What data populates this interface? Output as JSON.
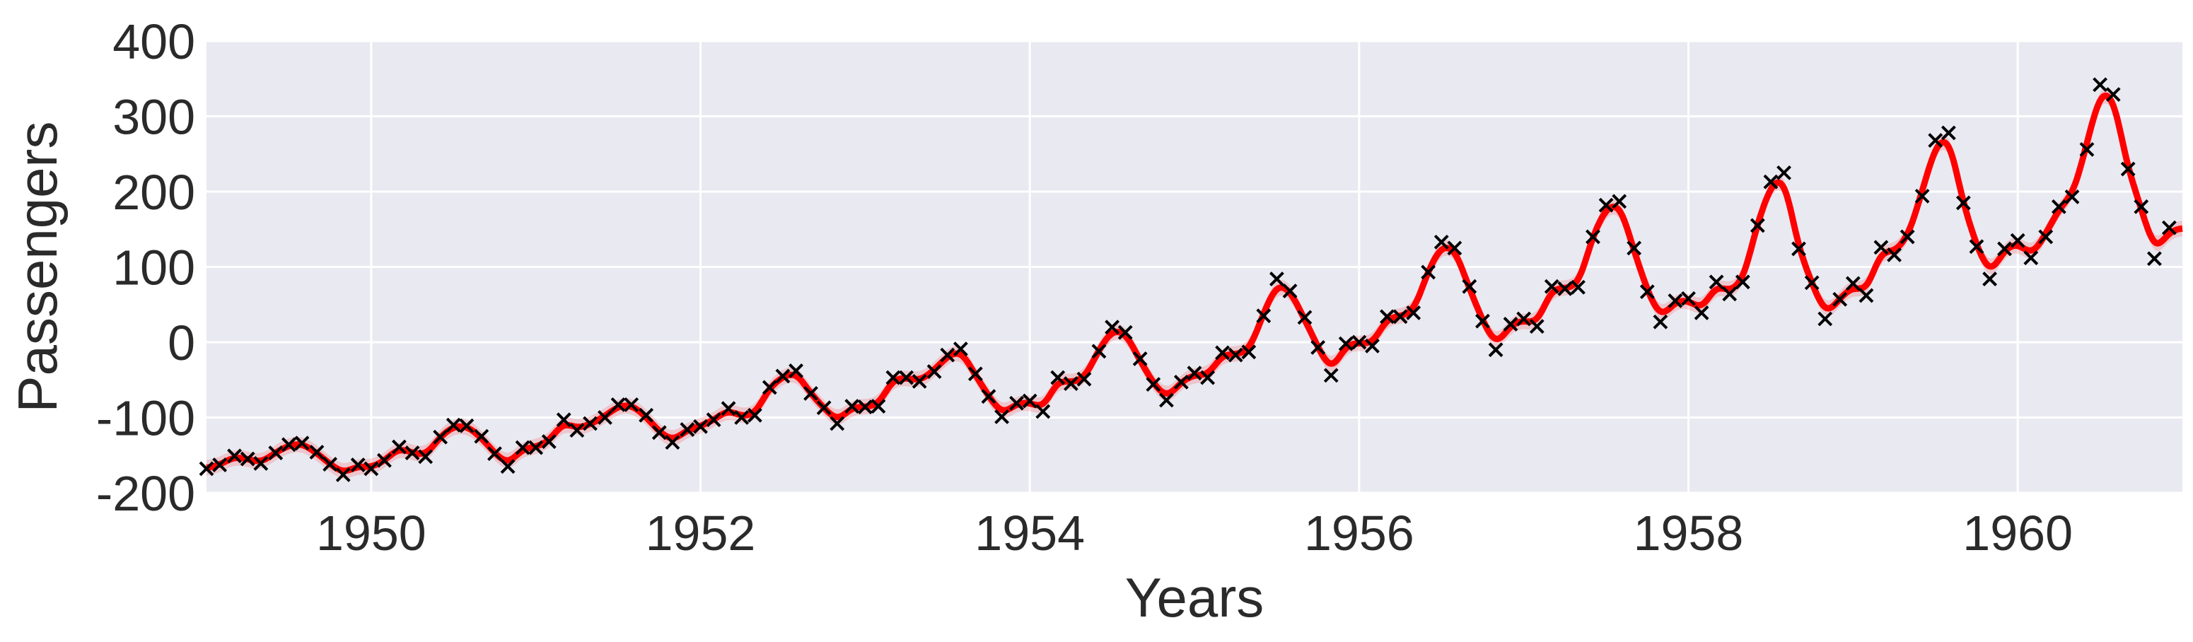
{
  "chart_data": {
    "type": "line",
    "xlabel": "Years",
    "ylabel": "Passengers",
    "xlim": [
      1949.0,
      1961.0
    ],
    "ylim": [
      -200,
      400
    ],
    "x_ticks": [
      1950,
      1952,
      1954,
      1956,
      1958,
      1960
    ],
    "x_tick_labels": [
      "1950",
      "1952",
      "1954",
      "1956",
      "1958",
      "1960"
    ],
    "y_ticks": [
      400,
      300,
      200,
      100,
      0,
      -100,
      -200
    ],
    "y_tick_labels": [
      "400",
      "300",
      "200",
      "100",
      "0",
      "-100",
      "-200"
    ],
    "grid": true,
    "background_color": "#e9e9f1",
    "series": [
      {
        "kind": "observed",
        "marker": "x",
        "color": "#000000",
        "points": [
          [
            1949.0,
            -168
          ],
          [
            1949.08,
            -163
          ],
          [
            1949.17,
            -151
          ],
          [
            1949.25,
            -155
          ],
          [
            1949.33,
            -161
          ],
          [
            1949.42,
            -147
          ],
          [
            1949.5,
            -136
          ],
          [
            1949.58,
            -134
          ],
          [
            1949.67,
            -146
          ],
          [
            1949.75,
            -162
          ],
          [
            1949.83,
            -176
          ],
          [
            1949.92,
            -163
          ],
          [
            1950.0,
            -168
          ],
          [
            1950.08,
            -157
          ],
          [
            1950.17,
            -139
          ],
          [
            1950.25,
            -147
          ],
          [
            1950.33,
            -152
          ],
          [
            1950.42,
            -126
          ],
          [
            1950.5,
            -110
          ],
          [
            1950.58,
            -111
          ],
          [
            1950.67,
            -125
          ],
          [
            1950.75,
            -148
          ],
          [
            1950.83,
            -165
          ],
          [
            1950.92,
            -140
          ],
          [
            1951.0,
            -140
          ],
          [
            1951.08,
            -132
          ],
          [
            1951.17,
            -103
          ],
          [
            1951.25,
            -117
          ],
          [
            1951.33,
            -108
          ],
          [
            1951.42,
            -100
          ],
          [
            1951.5,
            -83
          ],
          [
            1951.58,
            -83
          ],
          [
            1951.67,
            -97
          ],
          [
            1951.75,
            -120
          ],
          [
            1951.83,
            -133
          ],
          [
            1951.92,
            -116
          ],
          [
            1952.0,
            -112
          ],
          [
            1952.08,
            -103
          ],
          [
            1952.17,
            -88
          ],
          [
            1952.25,
            -100
          ],
          [
            1952.33,
            -97
          ],
          [
            1952.42,
            -60
          ],
          [
            1952.5,
            -45
          ],
          [
            1952.58,
            -38
          ],
          [
            1952.67,
            -68
          ],
          [
            1952.75,
            -87
          ],
          [
            1952.83,
            -108
          ],
          [
            1952.92,
            -85
          ],
          [
            1953.0,
            -86
          ],
          [
            1953.08,
            -85
          ],
          [
            1953.17,
            -47
          ],
          [
            1953.25,
            -47
          ],
          [
            1953.33,
            -52
          ],
          [
            1953.42,
            -39
          ],
          [
            1953.5,
            -17
          ],
          [
            1953.58,
            -9
          ],
          [
            1953.67,
            -42
          ],
          [
            1953.75,
            -72
          ],
          [
            1953.83,
            -99
          ],
          [
            1953.92,
            -81
          ],
          [
            1954.0,
            -78
          ],
          [
            1954.08,
            -92
          ],
          [
            1954.17,
            -47
          ],
          [
            1954.25,
            -55
          ],
          [
            1954.33,
            -49
          ],
          [
            1954.42,
            -12
          ],
          [
            1954.5,
            20
          ],
          [
            1954.58,
            13
          ],
          [
            1954.67,
            -22
          ],
          [
            1954.75,
            -56
          ],
          [
            1954.83,
            -77
          ],
          [
            1954.92,
            -53
          ],
          [
            1955.0,
            -41
          ],
          [
            1955.08,
            -47
          ],
          [
            1955.17,
            -14
          ],
          [
            1955.25,
            -17
          ],
          [
            1955.33,
            -13
          ],
          [
            1955.42,
            35
          ],
          [
            1955.5,
            84
          ],
          [
            1955.58,
            68
          ],
          [
            1955.67,
            33
          ],
          [
            1955.75,
            -7
          ],
          [
            1955.83,
            -44
          ],
          [
            1955.92,
            -2
          ],
          [
            1956.0,
            0
          ],
          [
            1956.08,
            -5
          ],
          [
            1956.17,
            34
          ],
          [
            1956.25,
            34
          ],
          [
            1956.33,
            39
          ],
          [
            1956.42,
            93
          ],
          [
            1956.5,
            133
          ],
          [
            1956.58,
            125
          ],
          [
            1956.67,
            74
          ],
          [
            1956.75,
            28
          ],
          [
            1956.83,
            -10
          ],
          [
            1956.92,
            24
          ],
          [
            1957.0,
            31
          ],
          [
            1957.08,
            21
          ],
          [
            1957.17,
            74
          ],
          [
            1957.25,
            71
          ],
          [
            1957.33,
            73
          ],
          [
            1957.42,
            140
          ],
          [
            1957.5,
            182
          ],
          [
            1957.58,
            187
          ],
          [
            1957.67,
            125
          ],
          [
            1957.75,
            67
          ],
          [
            1957.83,
            27
          ],
          [
            1957.92,
            55
          ],
          [
            1958.0,
            58
          ],
          [
            1958.08,
            39
          ],
          [
            1958.17,
            80
          ],
          [
            1958.25,
            64
          ],
          [
            1958.33,
            80
          ],
          [
            1958.42,
            155
          ],
          [
            1958.5,
            213
          ],
          [
            1958.58,
            225
          ],
          [
            1958.67,
            124
          ],
          [
            1958.75,
            79
          ],
          [
            1958.83,
            31
          ],
          [
            1958.92,
            57
          ],
          [
            1959.0,
            78
          ],
          [
            1959.08,
            62
          ],
          [
            1959.17,
            126
          ],
          [
            1959.25,
            116
          ],
          [
            1959.33,
            140
          ],
          [
            1959.42,
            194
          ],
          [
            1959.5,
            268
          ],
          [
            1959.58,
            278
          ],
          [
            1959.67,
            185
          ],
          [
            1959.75,
            127
          ],
          [
            1959.83,
            84
          ],
          [
            1959.92,
            124
          ],
          [
            1960.0,
            135
          ],
          [
            1960.08,
            112
          ],
          [
            1960.17,
            140
          ],
          [
            1960.25,
            180
          ],
          [
            1960.33,
            193
          ],
          [
            1960.42,
            256
          ],
          [
            1960.5,
            342
          ],
          [
            1960.58,
            329
          ],
          [
            1960.67,
            230
          ],
          [
            1960.75,
            180
          ],
          [
            1960.83,
            111
          ],
          [
            1960.92,
            152
          ]
        ]
      },
      {
        "kind": "fit",
        "color": "#ff0000",
        "style": "smooth line with faint uncertainty band"
      }
    ]
  }
}
